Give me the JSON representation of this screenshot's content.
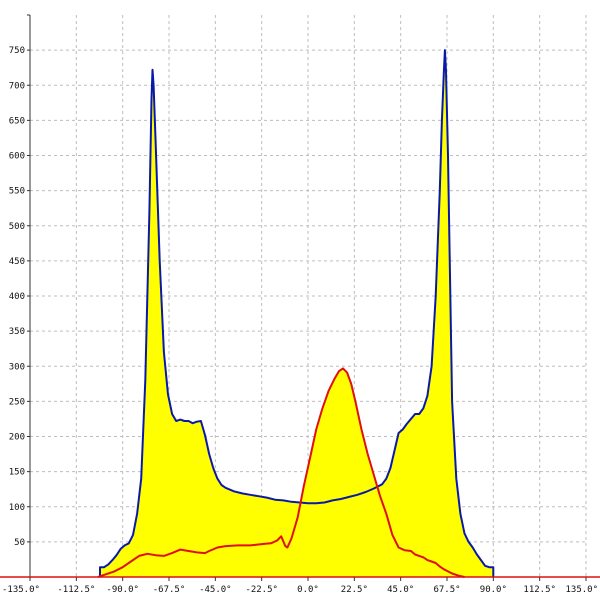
{
  "chart_data": {
    "type": "area",
    "title": "",
    "xlabel": "",
    "ylabel": "",
    "xlim": [
      -135,
      135
    ],
    "ylim": [
      0,
      800
    ],
    "grid": true,
    "x_ticks": [
      -135,
      -112.5,
      -90,
      -67.5,
      -45,
      -22.5,
      0,
      22.5,
      45,
      67.5,
      90,
      112.5,
      135
    ],
    "x_tick_labels": [
      "-135.0°",
      "-112.5°",
      "-90.0°",
      "-67.5°",
      "-45.0°",
      "-22.5°",
      "0.0°",
      "22.5°",
      "45.0°",
      "67.5°",
      "90.0°",
      "112.5°",
      "135.0°"
    ],
    "y_ticks": [
      50,
      100,
      150,
      200,
      250,
      300,
      350,
      400,
      450,
      500,
      550,
      600,
      650,
      700,
      750
    ],
    "y_tick_labels": [
      "50",
      "100",
      "150",
      "200",
      "250",
      "300",
      "350",
      "400",
      "450",
      "500",
      "550",
      "600",
      "650",
      "700",
      "750"
    ],
    "series": [
      {
        "color": "#0a1aa8",
        "fill": "#ffff00",
        "points": [
          [
            -101,
            0
          ],
          [
            -101,
            14
          ],
          [
            -99,
            14
          ],
          [
            -97,
            18
          ],
          [
            -95,
            24
          ],
          [
            -93,
            31
          ],
          [
            -91,
            40
          ],
          [
            -89,
            45
          ],
          [
            -87,
            48
          ],
          [
            -85,
            60
          ],
          [
            -83,
            90
          ],
          [
            -81,
            140
          ],
          [
            -79,
            280
          ],
          [
            -77,
            520
          ],
          [
            -76,
            680
          ],
          [
            -75.5,
            722
          ],
          [
            -75,
            700
          ],
          [
            -74,
            620
          ],
          [
            -72,
            450
          ],
          [
            -70,
            320
          ],
          [
            -68,
            260
          ],
          [
            -66,
            232
          ],
          [
            -64,
            222
          ],
          [
            -62,
            224
          ],
          [
            -60,
            222
          ],
          [
            -58,
            222
          ],
          [
            -56,
            219
          ],
          [
            -54,
            221
          ],
          [
            -52,
            222
          ],
          [
            -50,
            202
          ],
          [
            -48,
            175
          ],
          [
            -46,
            155
          ],
          [
            -44,
            140
          ],
          [
            -42,
            131
          ],
          [
            -40,
            127
          ],
          [
            -36,
            122
          ],
          [
            -32,
            119
          ],
          [
            -28,
            117
          ],
          [
            -24,
            115
          ],
          [
            -20,
            113
          ],
          [
            -16,
            110
          ],
          [
            -12,
            109
          ],
          [
            -8,
            107
          ],
          [
            -4,
            106
          ],
          [
            0,
            105
          ],
          [
            4,
            105
          ],
          [
            8,
            106
          ],
          [
            12,
            109
          ],
          [
            16,
            111
          ],
          [
            20,
            114
          ],
          [
            24,
            117
          ],
          [
            28,
            121
          ],
          [
            32,
            126
          ],
          [
            36,
            132
          ],
          [
            38,
            140
          ],
          [
            40,
            155
          ],
          [
            42,
            180
          ],
          [
            44,
            205
          ],
          [
            46,
            210
          ],
          [
            48,
            218
          ],
          [
            50,
            225
          ],
          [
            52,
            232
          ],
          [
            54,
            232
          ],
          [
            56,
            240
          ],
          [
            58,
            258
          ],
          [
            60,
            300
          ],
          [
            62,
            400
          ],
          [
            64,
            550
          ],
          [
            65,
            650
          ],
          [
            66,
            720
          ],
          [
            66.5,
            750
          ],
          [
            67,
            720
          ],
          [
            68,
            600
          ],
          [
            69,
            420
          ],
          [
            70,
            250
          ],
          [
            72,
            140
          ],
          [
            74,
            90
          ],
          [
            76,
            62
          ],
          [
            78,
            50
          ],
          [
            80,
            42
          ],
          [
            82,
            32
          ],
          [
            84,
            24
          ],
          [
            86,
            16
          ],
          [
            88,
            14
          ],
          [
            90,
            14
          ],
          [
            90,
            0
          ]
        ]
      },
      {
        "color": "#e01010",
        "fill": "#ffff00",
        "points": [
          [
            -102,
            0
          ],
          [
            -98,
            4
          ],
          [
            -94,
            8
          ],
          [
            -90,
            14
          ],
          [
            -86,
            22
          ],
          [
            -82,
            30
          ],
          [
            -78,
            33
          ],
          [
            -74,
            31
          ],
          [
            -70,
            30
          ],
          [
            -66,
            34
          ],
          [
            -62,
            39
          ],
          [
            -58,
            37
          ],
          [
            -54,
            35
          ],
          [
            -50,
            34
          ],
          [
            -48,
            37
          ],
          [
            -44,
            42
          ],
          [
            -40,
            44
          ],
          [
            -34,
            45
          ],
          [
            -28,
            45
          ],
          [
            -22,
            47
          ],
          [
            -18,
            48
          ],
          [
            -15,
            52
          ],
          [
            -13,
            58
          ],
          [
            -11,
            44
          ],
          [
            -10,
            42
          ],
          [
            -8,
            55
          ],
          [
            -5,
            85
          ],
          [
            -2,
            130
          ],
          [
            1,
            170
          ],
          [
            4,
            210
          ],
          [
            7,
            240
          ],
          [
            10,
            265
          ],
          [
            13,
            283
          ],
          [
            15,
            293
          ],
          [
            17,
            297
          ],
          [
            19,
            291
          ],
          [
            21,
            275
          ],
          [
            23,
            250
          ],
          [
            26,
            210
          ],
          [
            29,
            175
          ],
          [
            32,
            145
          ],
          [
            35,
            115
          ],
          [
            38,
            90
          ],
          [
            41,
            60
          ],
          [
            44,
            42
          ],
          [
            47,
            38
          ],
          [
            50,
            37
          ],
          [
            52,
            32
          ],
          [
            54,
            30
          ],
          [
            56,
            28
          ],
          [
            58,
            24
          ],
          [
            60,
            22
          ],
          [
            62,
            20
          ],
          [
            64,
            15
          ],
          [
            66,
            11
          ],
          [
            68,
            8
          ],
          [
            70,
            5
          ],
          [
            73,
            2
          ],
          [
            76,
            0
          ]
        ]
      }
    ]
  }
}
